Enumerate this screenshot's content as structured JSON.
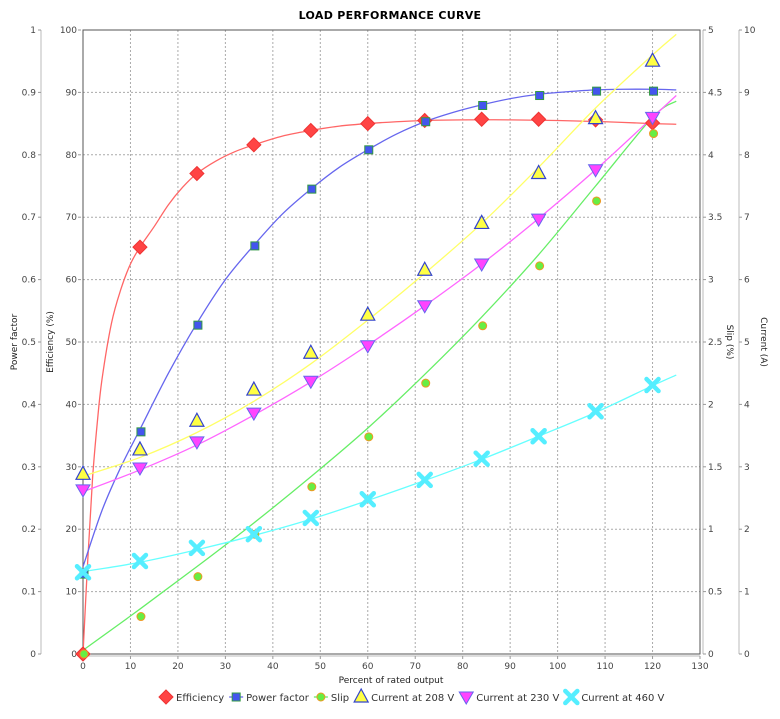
{
  "chart_data": {
    "type": "line",
    "title": "LOAD PERFORMANCE CURVE",
    "xlabel": "Percent of rated output",
    "xlim": [
      0,
      130
    ],
    "x_ticks": [
      0,
      10,
      20,
      30,
      40,
      50,
      60,
      70,
      80,
      90,
      100,
      110,
      120,
      130
    ],
    "grid": true,
    "legend_position": "bottom",
    "axes": {
      "power_factor": {
        "label": "Power factor",
        "side": "left-outer",
        "range": [
          0,
          1
        ],
        "ticks": [
          "0",
          "0.1",
          "0.2",
          "0.3",
          "0.4",
          "0.5",
          "0.6",
          "0.7",
          "0.8",
          "0.9",
          "1"
        ]
      },
      "efficiency": {
        "label": "Efficiency (%)",
        "side": "left-inner",
        "range": [
          0,
          100
        ],
        "ticks": [
          "0",
          "10",
          "20",
          "30",
          "40",
          "50",
          "60",
          "70",
          "80",
          "90",
          "100"
        ]
      },
      "slip": {
        "label": "Slip (%)",
        "side": "right-inner",
        "range": [
          0,
          5
        ],
        "ticks": [
          "0",
          "0.5",
          "1",
          "1.5",
          "2",
          "2.5",
          "3",
          "3.5",
          "4",
          "4.5",
          "5"
        ]
      },
      "current": {
        "label": "Current (A)",
        "side": "right-outer",
        "range": [
          0,
          10
        ],
        "ticks": [
          "0",
          "1",
          "2",
          "3",
          "4",
          "5",
          "6",
          "7",
          "8",
          "9",
          "10"
        ]
      }
    },
    "x": [
      0,
      12,
      24,
      36,
      48,
      60,
      72,
      84,
      96,
      108,
      120
    ],
    "series": [
      {
        "name": "Efficiency",
        "axis": "efficiency",
        "marker": "diamond",
        "color": "#ff4444",
        "line_color": "#ff6666",
        "values": [
          0,
          65.2,
          77.0,
          81.6,
          83.9,
          85.0,
          85.5,
          85.7,
          85.7,
          85.6,
          85.1
        ],
        "curve": [
          [
            0,
            0
          ],
          [
            1,
            15
          ],
          [
            2,
            28
          ],
          [
            3,
            37
          ],
          [
            4,
            44
          ],
          [
            6,
            53
          ],
          [
            8,
            58.5
          ],
          [
            10,
            62.5
          ],
          [
            12,
            65.2
          ],
          [
            15,
            68.5
          ],
          [
            18,
            72
          ],
          [
            21,
            74.8
          ],
          [
            24,
            77
          ],
          [
            28,
            79
          ],
          [
            32,
            80.5
          ],
          [
            36,
            81.6
          ],
          [
            42,
            83
          ],
          [
            48,
            83.9
          ],
          [
            54,
            84.6
          ],
          [
            60,
            85.0
          ],
          [
            66,
            85.3
          ],
          [
            72,
            85.5
          ],
          [
            80,
            85.6
          ],
          [
            90,
            85.6
          ],
          [
            100,
            85.5
          ],
          [
            110,
            85.3
          ],
          [
            120,
            85.0
          ],
          [
            125,
            84.9
          ]
        ]
      },
      {
        "name": "Power factor",
        "axis": "power_factor",
        "marker": "square",
        "color": "#4455ee",
        "line_color": "#6666ee",
        "stroke": "#339944",
        "values": [
          0.128,
          0.356,
          0.527,
          0.654,
          0.745,
          0.808,
          0.853,
          0.879,
          0.895,
          0.902,
          0.902
        ],
        "curve": [
          [
            0,
            0.14
          ],
          [
            4,
            0.23
          ],
          [
            8,
            0.3
          ],
          [
            12,
            0.36
          ],
          [
            18,
            0.45
          ],
          [
            24,
            0.53
          ],
          [
            30,
            0.6
          ],
          [
            36,
            0.655
          ],
          [
            42,
            0.705
          ],
          [
            48,
            0.745
          ],
          [
            54,
            0.78
          ],
          [
            60,
            0.808
          ],
          [
            66,
            0.833
          ],
          [
            72,
            0.853
          ],
          [
            78,
            0.868
          ],
          [
            84,
            0.88
          ],
          [
            90,
            0.89
          ],
          [
            96,
            0.897
          ],
          [
            102,
            0.901
          ],
          [
            108,
            0.904
          ],
          [
            114,
            0.905
          ],
          [
            120,
            0.905
          ],
          [
            125,
            0.904
          ]
        ]
      },
      {
        "name": "Slip",
        "axis": "slip",
        "marker": "circle",
        "color": "#66ee44",
        "line_color": "#66ee66",
        "stroke": "#ee9922",
        "values": [
          0,
          0.3,
          0.62,
          0.96,
          1.34,
          1.74,
          2.17,
          2.63,
          3.11,
          3.63,
          4.17
        ],
        "curve": [
          [
            0,
            0.03
          ],
          [
            12,
            0.36
          ],
          [
            24,
            0.7
          ],
          [
            36,
            1.05
          ],
          [
            48,
            1.42
          ],
          [
            60,
            1.81
          ],
          [
            72,
            2.24
          ],
          [
            84,
            2.7
          ],
          [
            96,
            3.2
          ],
          [
            108,
            3.75
          ],
          [
            120,
            4.3
          ],
          [
            125,
            4.43
          ]
        ]
      },
      {
        "name": "Current at 208 V",
        "axis": "current",
        "marker": "triangle-up",
        "color": "#ffff44",
        "line_color": "#ffff66",
        "stroke": "#3344cc",
        "values": [
          2.88,
          3.27,
          3.73,
          4.23,
          4.82,
          5.43,
          6.15,
          6.9,
          7.7,
          8.58,
          9.5
        ],
        "curve": [
          [
            0,
            2.85
          ],
          [
            12,
            3.15
          ],
          [
            24,
            3.55
          ],
          [
            36,
            4.05
          ],
          [
            48,
            4.65
          ],
          [
            60,
            5.35
          ],
          [
            72,
            6.1
          ],
          [
            84,
            6.9
          ],
          [
            96,
            7.8
          ],
          [
            108,
            8.75
          ],
          [
            120,
            9.6
          ],
          [
            125,
            9.93
          ]
        ]
      },
      {
        "name": "Current at 230 V",
        "axis": "current",
        "marker": "triangle-down",
        "color": "#ff44ff",
        "line_color": "#ff66ff",
        "stroke": "#6666ee",
        "values": [
          2.63,
          2.98,
          3.4,
          3.86,
          4.37,
          4.94,
          5.58,
          6.25,
          6.97,
          7.76,
          8.6
        ],
        "curve": [
          [
            0,
            2.6
          ],
          [
            12,
            2.95
          ],
          [
            24,
            3.35
          ],
          [
            36,
            3.83
          ],
          [
            48,
            4.36
          ],
          [
            60,
            4.95
          ],
          [
            72,
            5.58
          ],
          [
            84,
            6.25
          ],
          [
            96,
            6.98
          ],
          [
            108,
            7.76
          ],
          [
            120,
            8.6
          ],
          [
            125,
            8.95
          ]
        ]
      },
      {
        "name": "Current at 460 V",
        "axis": "current",
        "marker": "x",
        "color": "#55eeff",
        "line_color": "#66ffff",
        "values": [
          1.31,
          1.49,
          1.7,
          1.92,
          2.18,
          2.48,
          2.79,
          3.13,
          3.49,
          3.89,
          4.31
        ],
        "curve": [
          [
            0,
            1.32
          ],
          [
            12,
            1.47
          ],
          [
            24,
            1.67
          ],
          [
            36,
            1.9
          ],
          [
            48,
            2.16
          ],
          [
            60,
            2.46
          ],
          [
            72,
            2.78
          ],
          [
            84,
            3.12
          ],
          [
            96,
            3.49
          ],
          [
            108,
            3.87
          ],
          [
            120,
            4.3
          ],
          [
            125,
            4.47
          ]
        ]
      }
    ]
  }
}
